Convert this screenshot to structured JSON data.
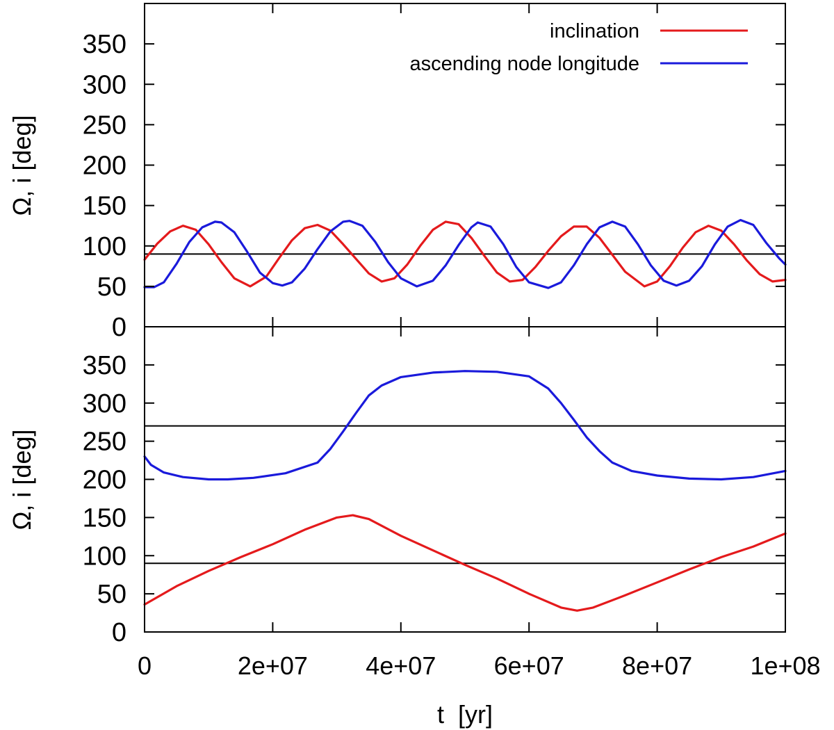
{
  "chart_data": [
    {
      "type": "line",
      "panel": "top",
      "xlabel": "t  [yr]",
      "ylabel": "Ω, i  [deg]",
      "xlim": [
        0,
        100000000
      ],
      "ylim": [
        0,
        400
      ],
      "y_ticks": [
        {
          "value": 0,
          "label": "0"
        },
        {
          "value": 50,
          "label": "50"
        },
        {
          "value": 100,
          "label": "100"
        },
        {
          "value": 150,
          "label": "150"
        },
        {
          "value": 200,
          "label": "200"
        },
        {
          "value": 250,
          "label": "250"
        },
        {
          "value": 300,
          "label": "300"
        },
        {
          "value": 350,
          "label": "350"
        }
      ],
      "reference_lines": [
        90
      ],
      "legend": {
        "position": "top-right"
      },
      "series": [
        {
          "name": "inclination",
          "color": "#e41a1c",
          "x": [
            0,
            2000000,
            4000000,
            6000000,
            8000000,
            10000000,
            12000000,
            14000000,
            16500000,
            19000000,
            21000000,
            23000000,
            25000000,
            27000000,
            29000000,
            31000000,
            33000000,
            35000000,
            37000000,
            39000000,
            41000000,
            43000000,
            45000000,
            47000000,
            49000000,
            51000000,
            53000000,
            55000000,
            57000000,
            59000000,
            61000000,
            63000000,
            65000000,
            67000000,
            69000000,
            71000000,
            73000000,
            75000000,
            78000000,
            80000000,
            82000000,
            84000000,
            86000000,
            88000000,
            90000000,
            92000000,
            94000000,
            96000000,
            98000000,
            100000000
          ],
          "values": [
            83,
            103,
            118,
            125,
            120,
            102,
            80,
            60,
            50,
            62,
            85,
            107,
            122,
            126,
            119,
            102,
            84,
            66,
            56,
            60,
            77,
            100,
            120,
            130,
            127,
            110,
            88,
            67,
            56,
            58,
            74,
            94,
            112,
            124,
            124,
            110,
            89,
            68,
            50,
            56,
            75,
            98,
            117,
            125,
            119,
            102,
            82,
            65,
            56,
            58
          ]
        },
        {
          "name": "ascending node longitude",
          "color": "#1a1adb",
          "x": [
            0,
            1500000,
            3000000,
            5000000,
            7000000,
            9000000,
            11000000,
            12000000,
            14000000,
            16000000,
            18000000,
            20000000,
            21500000,
            23000000,
            25000000,
            27000000,
            29000000,
            31000000,
            32000000,
            34000000,
            36000000,
            38000000,
            40000000,
            42500000,
            45000000,
            47000000,
            49000000,
            51000000,
            52000000,
            54000000,
            56000000,
            58000000,
            60000000,
            63000000,
            65000000,
            67000000,
            69000000,
            71000000,
            73000000,
            75000000,
            77000000,
            79000000,
            81000000,
            83000000,
            85000000,
            87000000,
            89000000,
            91000000,
            93000000,
            95000000,
            97000000,
            99000000,
            100000000
          ],
          "values": [
            49,
            49,
            55,
            78,
            105,
            123,
            130,
            129,
            117,
            93,
            67,
            54,
            51,
            55,
            72,
            96,
            118,
            130,
            131,
            125,
            105,
            80,
            60,
            50,
            57,
            76,
            101,
            123,
            129,
            124,
            102,
            74,
            55,
            48,
            55,
            76,
            102,
            123,
            130,
            124,
            102,
            76,
            57,
            51,
            57,
            75,
            102,
            124,
            132,
            126,
            104,
            85,
            77
          ]
        }
      ]
    },
    {
      "type": "line",
      "panel": "bottom",
      "xlabel": "t  [yr]",
      "ylabel": "Ω, i  [deg]",
      "xlim": [
        0,
        100000000
      ],
      "ylim": [
        0,
        400
      ],
      "y_ticks": [
        {
          "value": 0,
          "label": "0"
        },
        {
          "value": 50,
          "label": "50"
        },
        {
          "value": 100,
          "label": "100"
        },
        {
          "value": 150,
          "label": "150"
        },
        {
          "value": 200,
          "label": "200"
        },
        {
          "value": 250,
          "label": "250"
        },
        {
          "value": 300,
          "label": "300"
        },
        {
          "value": 350,
          "label": "350"
        }
      ],
      "x_ticks": [
        {
          "value": 0,
          "label": "0"
        },
        {
          "value": 20000000,
          "label": "2e+07"
        },
        {
          "value": 40000000,
          "label": "4e+07"
        },
        {
          "value": 60000000,
          "label": "6e+07"
        },
        {
          "value": 80000000,
          "label": "8e+07"
        },
        {
          "value": 100000000,
          "label": "1e+08"
        }
      ],
      "reference_lines": [
        90,
        270
      ],
      "series": [
        {
          "name": "inclination",
          "color": "#e41a1c",
          "x": [
            0,
            5000000,
            10000000,
            15000000,
            20000000,
            25000000,
            30000000,
            32500000,
            35000000,
            40000000,
            45000000,
            50000000,
            55000000,
            60000000,
            65000000,
            67500000,
            70000000,
            75000000,
            80000000,
            85000000,
            90000000,
            95000000,
            100000000
          ],
          "values": [
            36,
            60,
            80,
            98,
            115,
            134,
            150,
            153,
            148,
            126,
            107,
            88,
            70,
            50,
            32,
            28,
            32,
            48,
            65,
            82,
            98,
            112,
            129
          ]
        },
        {
          "name": "ascending node longitude",
          "color": "#1a1adb",
          "x": [
            0,
            1000000,
            3000000,
            6000000,
            10000000,
            13000000,
            17000000,
            22000000,
            27000000,
            29000000,
            31000000,
            33000000,
            35000000,
            37000000,
            40000000,
            45000000,
            50000000,
            55000000,
            60000000,
            63000000,
            65000000,
            67000000,
            69000000,
            71000000,
            73000000,
            76000000,
            80000000,
            85000000,
            90000000,
            95000000,
            100000000
          ],
          "values": [
            230,
            219,
            209,
            203,
            200,
            200,
            202,
            208,
            222,
            240,
            263,
            287,
            310,
            323,
            334,
            340,
            342,
            341,
            335,
            319,
            300,
            278,
            255,
            237,
            222,
            211,
            205,
            201,
            200,
            203,
            211
          ]
        }
      ]
    }
  ]
}
